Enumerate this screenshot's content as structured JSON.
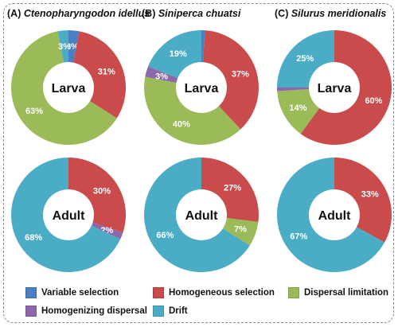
{
  "colors": {
    "variable_selection": "#4a7fc6",
    "homogeneous_selection": "#c94b4c",
    "dispersal_limitation": "#9bbb59",
    "homogenizing_dispersal": "#8c68aa",
    "drift": "#4bacc6"
  },
  "legend": {
    "variable_selection": "Variable selection",
    "homogeneous_selection": "Homogeneous selection",
    "dispersal_limitation": "Dispersal limitation",
    "homogenizing_dispersal": "Homogenizing dispersal",
    "drift": "Drift"
  },
  "panels": [
    {
      "letter": "(A)",
      "species": "Ctenopharyngodon idellus"
    },
    {
      "letter": "(B)",
      "species": "Siniperca chuatsi"
    },
    {
      "letter": "(C)",
      "species": "Silurus meridionalis"
    }
  ],
  "chart_data": [
    {
      "type": "pie",
      "panel": "(A) Ctenopharyngodon idellus",
      "center_label": "Larva",
      "slices": [
        {
          "category": "variable_selection",
          "value": 3,
          "label": "3%"
        },
        {
          "category": "homogeneous_selection",
          "value": 31,
          "label": "31%"
        },
        {
          "category": "dispersal_limitation",
          "value": 63,
          "label": "63%"
        },
        {
          "category": "drift",
          "value": 3,
          "label": "3%"
        }
      ]
    },
    {
      "type": "pie",
      "panel": "(B) Siniperca chuatsi",
      "center_label": "Larva",
      "slices": [
        {
          "category": "variable_selection",
          "value": 1,
          "label": ""
        },
        {
          "category": "homogeneous_selection",
          "value": 37,
          "label": "37%"
        },
        {
          "category": "dispersal_limitation",
          "value": 40,
          "label": "40%"
        },
        {
          "category": "homogenizing_dispersal",
          "value": 3,
          "label": "3%"
        },
        {
          "category": "drift",
          "value": 19,
          "label": "19%"
        }
      ]
    },
    {
      "type": "pie",
      "panel": "(C) Silurus meridionalis",
      "center_label": "Larva",
      "slices": [
        {
          "category": "homogeneous_selection",
          "value": 60,
          "label": "60%"
        },
        {
          "category": "dispersal_limitation",
          "value": 14,
          "label": "14%"
        },
        {
          "category": "homogenizing_dispersal",
          "value": 1,
          "label": ""
        },
        {
          "category": "drift",
          "value": 25,
          "label": "25%"
        }
      ]
    },
    {
      "type": "pie",
      "panel": "(A) Ctenopharyngodon idellus",
      "center_label": "Adult",
      "slices": [
        {
          "category": "homogeneous_selection",
          "value": 30,
          "label": "30%"
        },
        {
          "category": "homogenizing_dispersal",
          "value": 2,
          "label": "2%"
        },
        {
          "category": "drift",
          "value": 68,
          "label": "68%"
        }
      ]
    },
    {
      "type": "pie",
      "panel": "(B) Siniperca chuatsi",
      "center_label": "Adult",
      "slices": [
        {
          "category": "homogeneous_selection",
          "value": 27,
          "label": "27%"
        },
        {
          "category": "dispersal_limitation",
          "value": 7,
          "label": "7%"
        },
        {
          "category": "drift",
          "value": 66,
          "label": "66%"
        }
      ]
    },
    {
      "type": "pie",
      "panel": "(C) Silurus meridionalis",
      "center_label": "Adult",
      "slices": [
        {
          "category": "homogeneous_selection",
          "value": 33,
          "label": "33%"
        },
        {
          "category": "drift",
          "value": 67,
          "label": "67%"
        }
      ]
    }
  ]
}
